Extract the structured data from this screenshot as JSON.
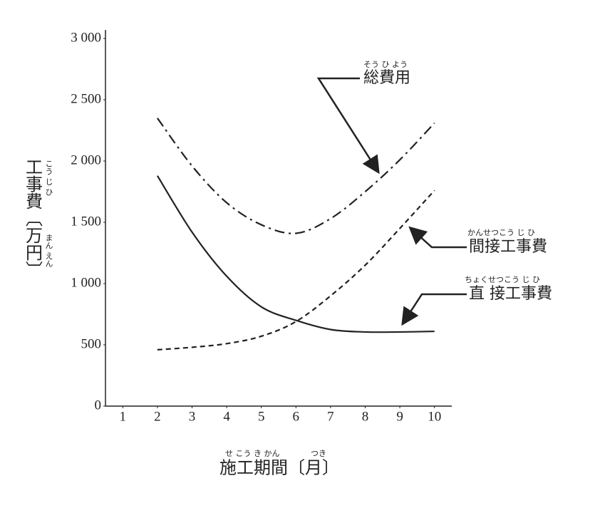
{
  "chart_data": {
    "type": "line",
    "y_label": "工事費〔万円〕",
    "y_label_ruby": [
      "こう じ ひ",
      "まん えん"
    ],
    "x_label": "施工期間〔月〕",
    "x_label_ruby": [
      "せ こう き かん",
      "つき"
    ],
    "x": [
      2,
      3,
      4,
      5,
      6,
      7,
      8,
      9,
      10
    ],
    "xlim": [
      0.5,
      10.5
    ],
    "xticks": [
      1,
      2,
      3,
      4,
      5,
      6,
      7,
      8,
      9,
      10
    ],
    "ylim": [
      0,
      3000
    ],
    "yticks": [
      0,
      500,
      {
        "value": 1000,
        "label": "1 000"
      },
      {
        "value": 1500,
        "label": "1 500"
      },
      {
        "value": 2000,
        "label": "2 000"
      },
      {
        "value": 2500,
        "label": "2 500"
      },
      {
        "value": 3000,
        "label": "3 000"
      }
    ],
    "series": [
      {
        "name": "総費用",
        "ruby": "そう ひ よう",
        "color": "#222222",
        "dash": "dashdot",
        "values": [
          2350,
          1960,
          1660,
          1480,
          1410,
          1530,
          1750,
          2010,
          2310
        ]
      },
      {
        "name": "間接工事費",
        "ruby": "かんせつこう じ ひ",
        "color": "#222222",
        "dash": "dashed",
        "values": [
          460,
          480,
          510,
          570,
          690,
          900,
          1150,
          1450,
          1760
        ]
      },
      {
        "name": "直 接工事費",
        "ruby": "ちょくせつこう じ ひ",
        "color": "#222222",
        "dash": "solid",
        "values": [
          1880,
          1420,
          1060,
          810,
          700,
          625,
          605,
          605,
          610
        ]
      }
    ]
  }
}
